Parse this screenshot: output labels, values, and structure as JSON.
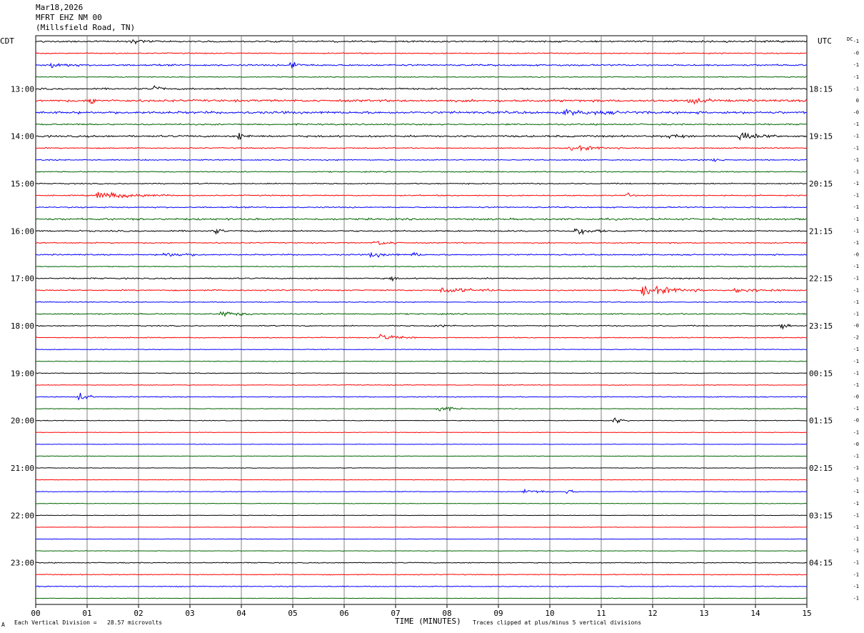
{
  "header": {
    "date": "Mar18,2026",
    "station": "MFRT EHZ NM 00",
    "location": "(Millsfield Road, TN)"
  },
  "left_axis_label": "CDT",
  "right_axis_label": "UTC",
  "dc_label": "DC",
  "footer": {
    "scale_note": "Each Vertical Division =   28.57 microvolts",
    "x_title": "TIME (MINUTES)",
    "clip_note": "Traces clipped at plus/minus 5 vertical divisions",
    "corner_mark": "A"
  },
  "colors": {
    "trace_cycle": [
      "#000000",
      "#ff0000",
      "#0000ff",
      "#006400"
    ],
    "grid": "#808080"
  },
  "chart_data": {
    "type": "line",
    "title": "Mar18,2026 MFRT EHZ NM 00 (Millsfield Road, TN)",
    "xlabel": "TIME (MINUTES)",
    "xlim": [
      0,
      15
    ],
    "x_ticks": [
      "00",
      "01",
      "02",
      "03",
      "04",
      "05",
      "06",
      "07",
      "08",
      "09",
      "10",
      "11",
      "12",
      "13",
      "14",
      "15"
    ],
    "trace_count": 48,
    "trace_minutes": 15,
    "left_hour_labels": [
      "13:00",
      "14:00",
      "15:00",
      "16:00",
      "17:00",
      "18:00",
      "19:00",
      "20:00",
      "21:00",
      "22:00",
      "23:00"
    ],
    "left_hour_first_trace": [
      4,
      8,
      12,
      16,
      20,
      24,
      28,
      32,
      36,
      40,
      44
    ],
    "right_hour_labels": [
      "18:15",
      "19:15",
      "20:15",
      "21:15",
      "22:15",
      "23:15",
      "00:15",
      "01:15",
      "02:15",
      "03:15",
      "04:15"
    ],
    "dc_offsets": [
      "-1",
      "-0",
      "-1",
      "-1",
      "-1",
      "0",
      "-0",
      "-1",
      "-1",
      "-1",
      "-1",
      "-1",
      "-1",
      "-1",
      "-1",
      "-1",
      "-1",
      "-1",
      "-0",
      "-1",
      "-1",
      "-1",
      "-1",
      "-1",
      "-0",
      "-2",
      "-1",
      "-1",
      "-1",
      "-1",
      "-0",
      "-1",
      "-0",
      "-1",
      "-0",
      "-1",
      "-1",
      "-1",
      "-1",
      "-1",
      "-1",
      "-1",
      "-1",
      "-1",
      "-1",
      "-1",
      "-1",
      "-1"
    ],
    "noise_level": [
      0.9,
      0.6,
      0.9,
      0.5,
      0.9,
      1.2,
      1.3,
      0.8,
      1.0,
      0.6,
      0.6,
      0.6,
      0.6,
      0.6,
      0.7,
      1.0,
      0.8,
      0.6,
      0.7,
      0.5,
      0.7,
      0.7,
      0.5,
      0.7,
      0.6,
      0.5,
      0.4,
      0.4,
      0.4,
      0.4,
      0.5,
      0.4,
      0.4,
      0.3,
      0.3,
      0.3,
      0.3,
      0.3,
      0.4,
      0.3,
      0.3,
      0.3,
      0.3,
      0.3,
      0.5,
      0.5,
      0.5,
      0.3
    ],
    "events": [
      {
        "trace": 0,
        "minute": 1.85,
        "amplitude": 4,
        "duration_min": 0.3
      },
      {
        "trace": 2,
        "minute": 0.3,
        "amplitude": 3,
        "duration_min": 0.6
      },
      {
        "trace": 2,
        "minute": 4.98,
        "amplitude": 6,
        "duration_min": 0.25
      },
      {
        "trace": 4,
        "minute": 2.32,
        "amplitude": 5,
        "duration_min": 0.2
      },
      {
        "trace": 5,
        "minute": 1.05,
        "amplitude": 5,
        "duration_min": 0.3
      },
      {
        "trace": 5,
        "minute": 12.7,
        "amplitude": 3,
        "duration_min": 0.6
      },
      {
        "trace": 6,
        "minute": 10.3,
        "amplitude": 2,
        "duration_min": 1.5
      },
      {
        "trace": 8,
        "minute": 3.95,
        "amplitude": 4,
        "duration_min": 0.3
      },
      {
        "trace": 8,
        "minute": 13.7,
        "amplitude": 5,
        "duration_min": 0.8
      },
      {
        "trace": 8,
        "minute": 12.3,
        "amplitude": 3,
        "duration_min": 0.5
      },
      {
        "trace": 9,
        "minute": 10.4,
        "amplitude": 3,
        "duration_min": 1.0
      },
      {
        "trace": 10,
        "minute": 13.2,
        "amplitude": 3,
        "duration_min": 0.2
      },
      {
        "trace": 13,
        "minute": 1.2,
        "amplitude": 4,
        "duration_min": 1.5
      },
      {
        "trace": 13,
        "minute": 11.5,
        "amplitude": 3,
        "duration_min": 0.2
      },
      {
        "trace": 16,
        "minute": 3.5,
        "amplitude": 4,
        "duration_min": 0.2
      },
      {
        "trace": 16,
        "minute": 10.5,
        "amplitude": 4,
        "duration_min": 0.6
      },
      {
        "trace": 17,
        "minute": 6.6,
        "amplitude": 3,
        "duration_min": 0.6
      },
      {
        "trace": 18,
        "minute": 2.5,
        "amplitude": 3,
        "duration_min": 0.8
      },
      {
        "trace": 18,
        "minute": 6.5,
        "amplitude": 3,
        "duration_min": 0.6
      },
      {
        "trace": 18,
        "minute": 7.35,
        "amplitude": 4,
        "duration_min": 0.2
      },
      {
        "trace": 20,
        "minute": 6.9,
        "amplitude": 4,
        "duration_min": 0.15
      },
      {
        "trace": 21,
        "minute": 7.9,
        "amplitude": 3,
        "duration_min": 1.2
      },
      {
        "trace": 21,
        "minute": 11.8,
        "amplitude": 6,
        "duration_min": 1.2
      },
      {
        "trace": 21,
        "minute": 13.6,
        "amplitude": 3,
        "duration_min": 1.0
      },
      {
        "trace": 23,
        "minute": 3.6,
        "amplitude": 3,
        "duration_min": 0.8
      },
      {
        "trace": 24,
        "minute": 14.5,
        "amplitude": 5,
        "duration_min": 0.2
      },
      {
        "trace": 24,
        "minute": 7.7,
        "amplitude": 2,
        "duration_min": 0.5
      },
      {
        "trace": 25,
        "minute": 6.7,
        "amplitude": 4,
        "duration_min": 0.7
      },
      {
        "trace": 30,
        "minute": 0.85,
        "amplitude": 5,
        "duration_min": 0.3
      },
      {
        "trace": 31,
        "minute": 7.8,
        "amplitude": 4,
        "duration_min": 0.5
      },
      {
        "trace": 32,
        "minute": 11.25,
        "amplitude": 4,
        "duration_min": 0.3
      },
      {
        "trace": 38,
        "minute": 9.5,
        "amplitude": 3,
        "duration_min": 0.6
      },
      {
        "trace": 38,
        "minute": 10.35,
        "amplitude": 4,
        "duration_min": 0.2
      }
    ]
  }
}
